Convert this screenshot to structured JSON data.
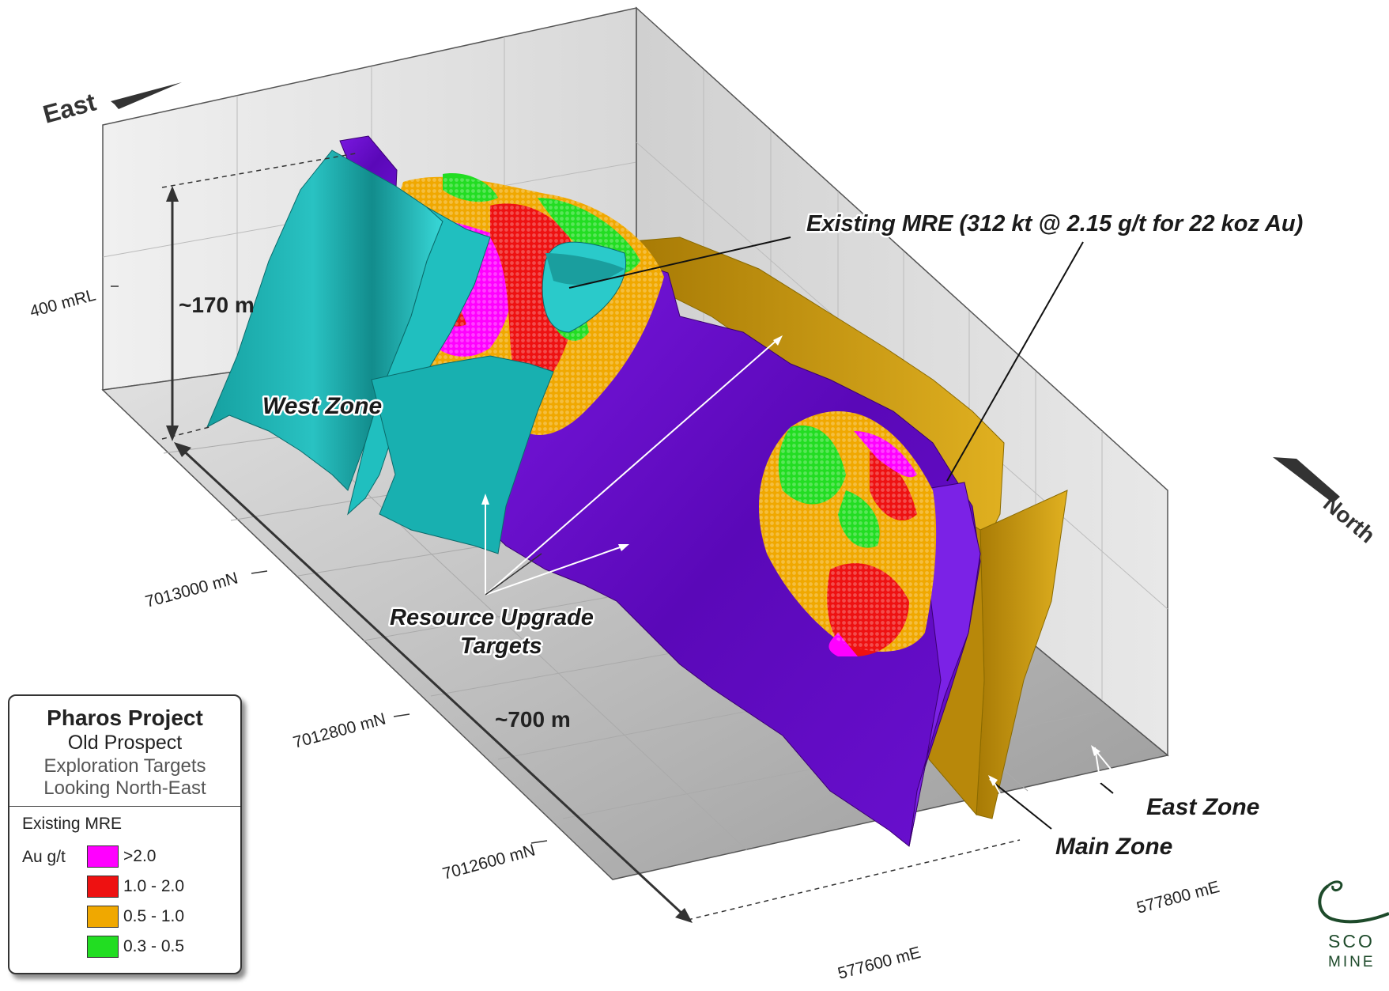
{
  "labels": {
    "east": "East",
    "north": "North",
    "height": "~170 m",
    "length": "~700 m",
    "rl_400": "400 mRL",
    "west_zone": "West Zone",
    "main_zone": "Main Zone",
    "east_zone": "East Zone",
    "existing_mre": "Existing MRE (312 kt @ 2.15 g/t for 22 koz Au)",
    "upgrade_line1": "Resource Upgrade",
    "upgrade_line2": "Targets"
  },
  "northings": [
    "7013000 mN",
    "7012800 mN",
    "7012600 mN"
  ],
  "eastings": [
    "577600 mE",
    "577800 mE"
  ],
  "legend": {
    "title": "Pharos Project",
    "subtitle": "Old Prospect",
    "line3": "Exploration Targets",
    "line4": "Looking North-East",
    "mre_label": "Existing MRE",
    "unit": "Au g/t",
    "ranges": [
      {
        "label": ">2.0",
        "color": "#ff00ff"
      },
      {
        "label": "1.0 - 2.0",
        "color": "#ee1111"
      },
      {
        "label": "0.5 - 1.0",
        "color": "#f0a800"
      },
      {
        "label": "0.3 - 0.5",
        "color": "#22dd22"
      }
    ]
  },
  "zone_colors": {
    "west": "#1fb5b5",
    "main": "#6a10c8",
    "east": "#c99a10"
  },
  "logo": {
    "text_line1": "SCO",
    "text_line2": "MINE"
  }
}
